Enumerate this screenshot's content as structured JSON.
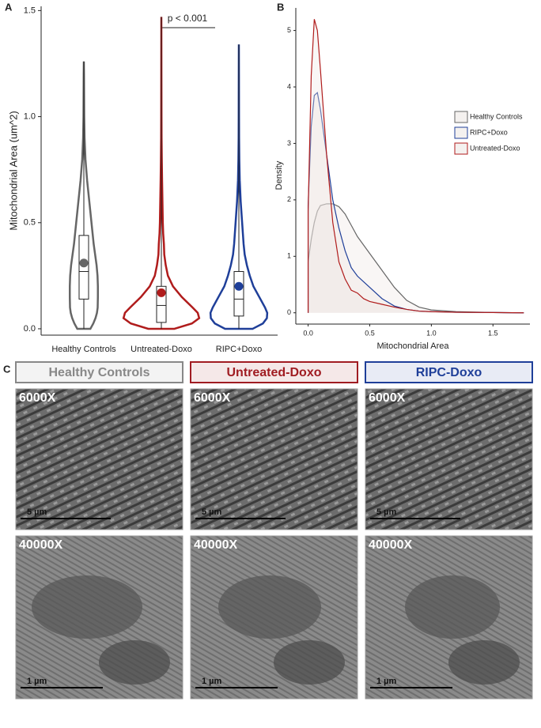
{
  "chart_data": [
    {
      "type": "violin",
      "panel_label": "A",
      "ylabel": "Mitochondrial Area (um^2)",
      "annotation": "p < 0.001",
      "categories": [
        "Healthy Controls",
        "Untreated-Doxo",
        "RIPC+Doxo"
      ],
      "colors": [
        "#666666",
        "#b01c1c",
        "#1f3f99"
      ],
      "min": [
        0,
        0,
        0
      ],
      "q1": [
        0.14,
        0.03,
        0.06
      ],
      "median": [
        0.27,
        0.11,
        0.14
      ],
      "q3": [
        0.44,
        0.2,
        0.27
      ],
      "max": [
        1.26,
        1.47,
        1.34
      ],
      "mean": [
        0.31,
        0.17,
        0.2
      ],
      "ylim": [
        -0.03,
        1.52
      ],
      "yticks": [
        {
          "value": 0,
          "label": "0.0"
        },
        0.5,
        {
          "value": 1,
          "label": "1.0"
        },
        1.5
      ]
    },
    {
      "type": "density",
      "panel_label": "B",
      "xlabel": "Mitochondrial Area",
      "ylabel": "Density",
      "x": [
        0,
        0.025,
        0.05,
        0.075,
        0.1,
        0.15,
        0.2,
        0.25,
        0.3,
        0.35,
        0.4,
        0.45,
        0.5,
        0.6,
        0.7,
        0.8,
        0.9,
        1.0,
        1.2,
        1.5,
        1.75
      ],
      "series": [
        {
          "name": "Healthy Controls",
          "color": "#666666",
          "values": [
            0.9,
            1.3,
            1.6,
            1.8,
            1.9,
            1.93,
            1.93,
            1.88,
            1.75,
            1.55,
            1.35,
            1.2,
            1.05,
            0.75,
            0.45,
            0.22,
            0.1,
            0.05,
            0.02,
            0.005,
            0
          ]
        },
        {
          "name": "RIPC+Doxo",
          "color": "#1f3f99",
          "values": [
            1.9,
            3.3,
            3.85,
            3.9,
            3.6,
            2.8,
            2.0,
            1.5,
            1.1,
            0.8,
            0.65,
            0.55,
            0.45,
            0.25,
            0.12,
            0.06,
            0.03,
            0.02,
            0.01,
            0.005,
            0
          ]
        },
        {
          "name": "Untreated-Doxo",
          "color": "#b01c1c",
          "values": [
            1.8,
            4.2,
            5.2,
            5.0,
            4.3,
            2.8,
            1.6,
            0.9,
            0.6,
            0.4,
            0.35,
            0.25,
            0.2,
            0.15,
            0.1,
            0.06,
            0.03,
            0.02,
            0.01,
            0.005,
            0
          ]
        }
      ],
      "xlim": [
        -0.1,
        1.8
      ],
      "ylim": [
        -0.2,
        5.4
      ],
      "xticks": [
        {
          "value": 0,
          "label": "0.0"
        },
        0.5,
        {
          "value": 1,
          "label": "1.0"
        },
        1.5
      ],
      "yticks": [
        0,
        1,
        2,
        3,
        4,
        5
      ],
      "legend": "right"
    }
  ],
  "panel_c": {
    "label": "C",
    "columns": [
      {
        "title": "Healthy Controls",
        "color": "#888888",
        "images": [
          {
            "magnification": "6000X",
            "scale_bar": "5 µm"
          },
          {
            "magnification": "40000X",
            "scale_bar": "1 µm"
          }
        ]
      },
      {
        "title": "Untreated-Doxo",
        "color": "#a01c22",
        "images": [
          {
            "magnification": "6000X",
            "scale_bar": "5 µm"
          },
          {
            "magnification": "40000X",
            "scale_bar": "1 µm"
          }
        ]
      },
      {
        "title": "RIPC-Doxo",
        "color": "#1f3f99",
        "images": [
          {
            "magnification": "6000X",
            "scale_bar": "5 µm"
          },
          {
            "magnification": "40000X",
            "scale_bar": "1 µm"
          }
        ]
      }
    ]
  }
}
